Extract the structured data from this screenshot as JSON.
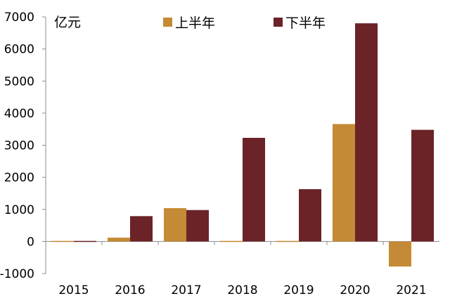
{
  "chart_data": {
    "type": "bar",
    "title": "",
    "unit_label": "亿元",
    "xlabel": "",
    "ylabel": "",
    "categories": [
      "2015",
      "2016",
      "2017",
      "2018",
      "2019",
      "2020",
      "2021"
    ],
    "series": [
      {
        "name": "上半年",
        "color": "#c48a35",
        "values": [
          30,
          120,
          1040,
          -10,
          -10,
          3660,
          -780
        ]
      },
      {
        "name": "下半年",
        "color": "#6b2328",
        "values": [
          -30,
          790,
          980,
          3230,
          1630,
          6800,
          3480
        ]
      }
    ],
    "yticks": [
      "7000",
      "6000",
      "5000",
      "4000",
      "3000",
      "2000",
      "1000",
      "0",
      "-1000"
    ],
    "ylim": [
      -1000,
      7000
    ],
    "grid": false,
    "legend_position": "top-center"
  }
}
